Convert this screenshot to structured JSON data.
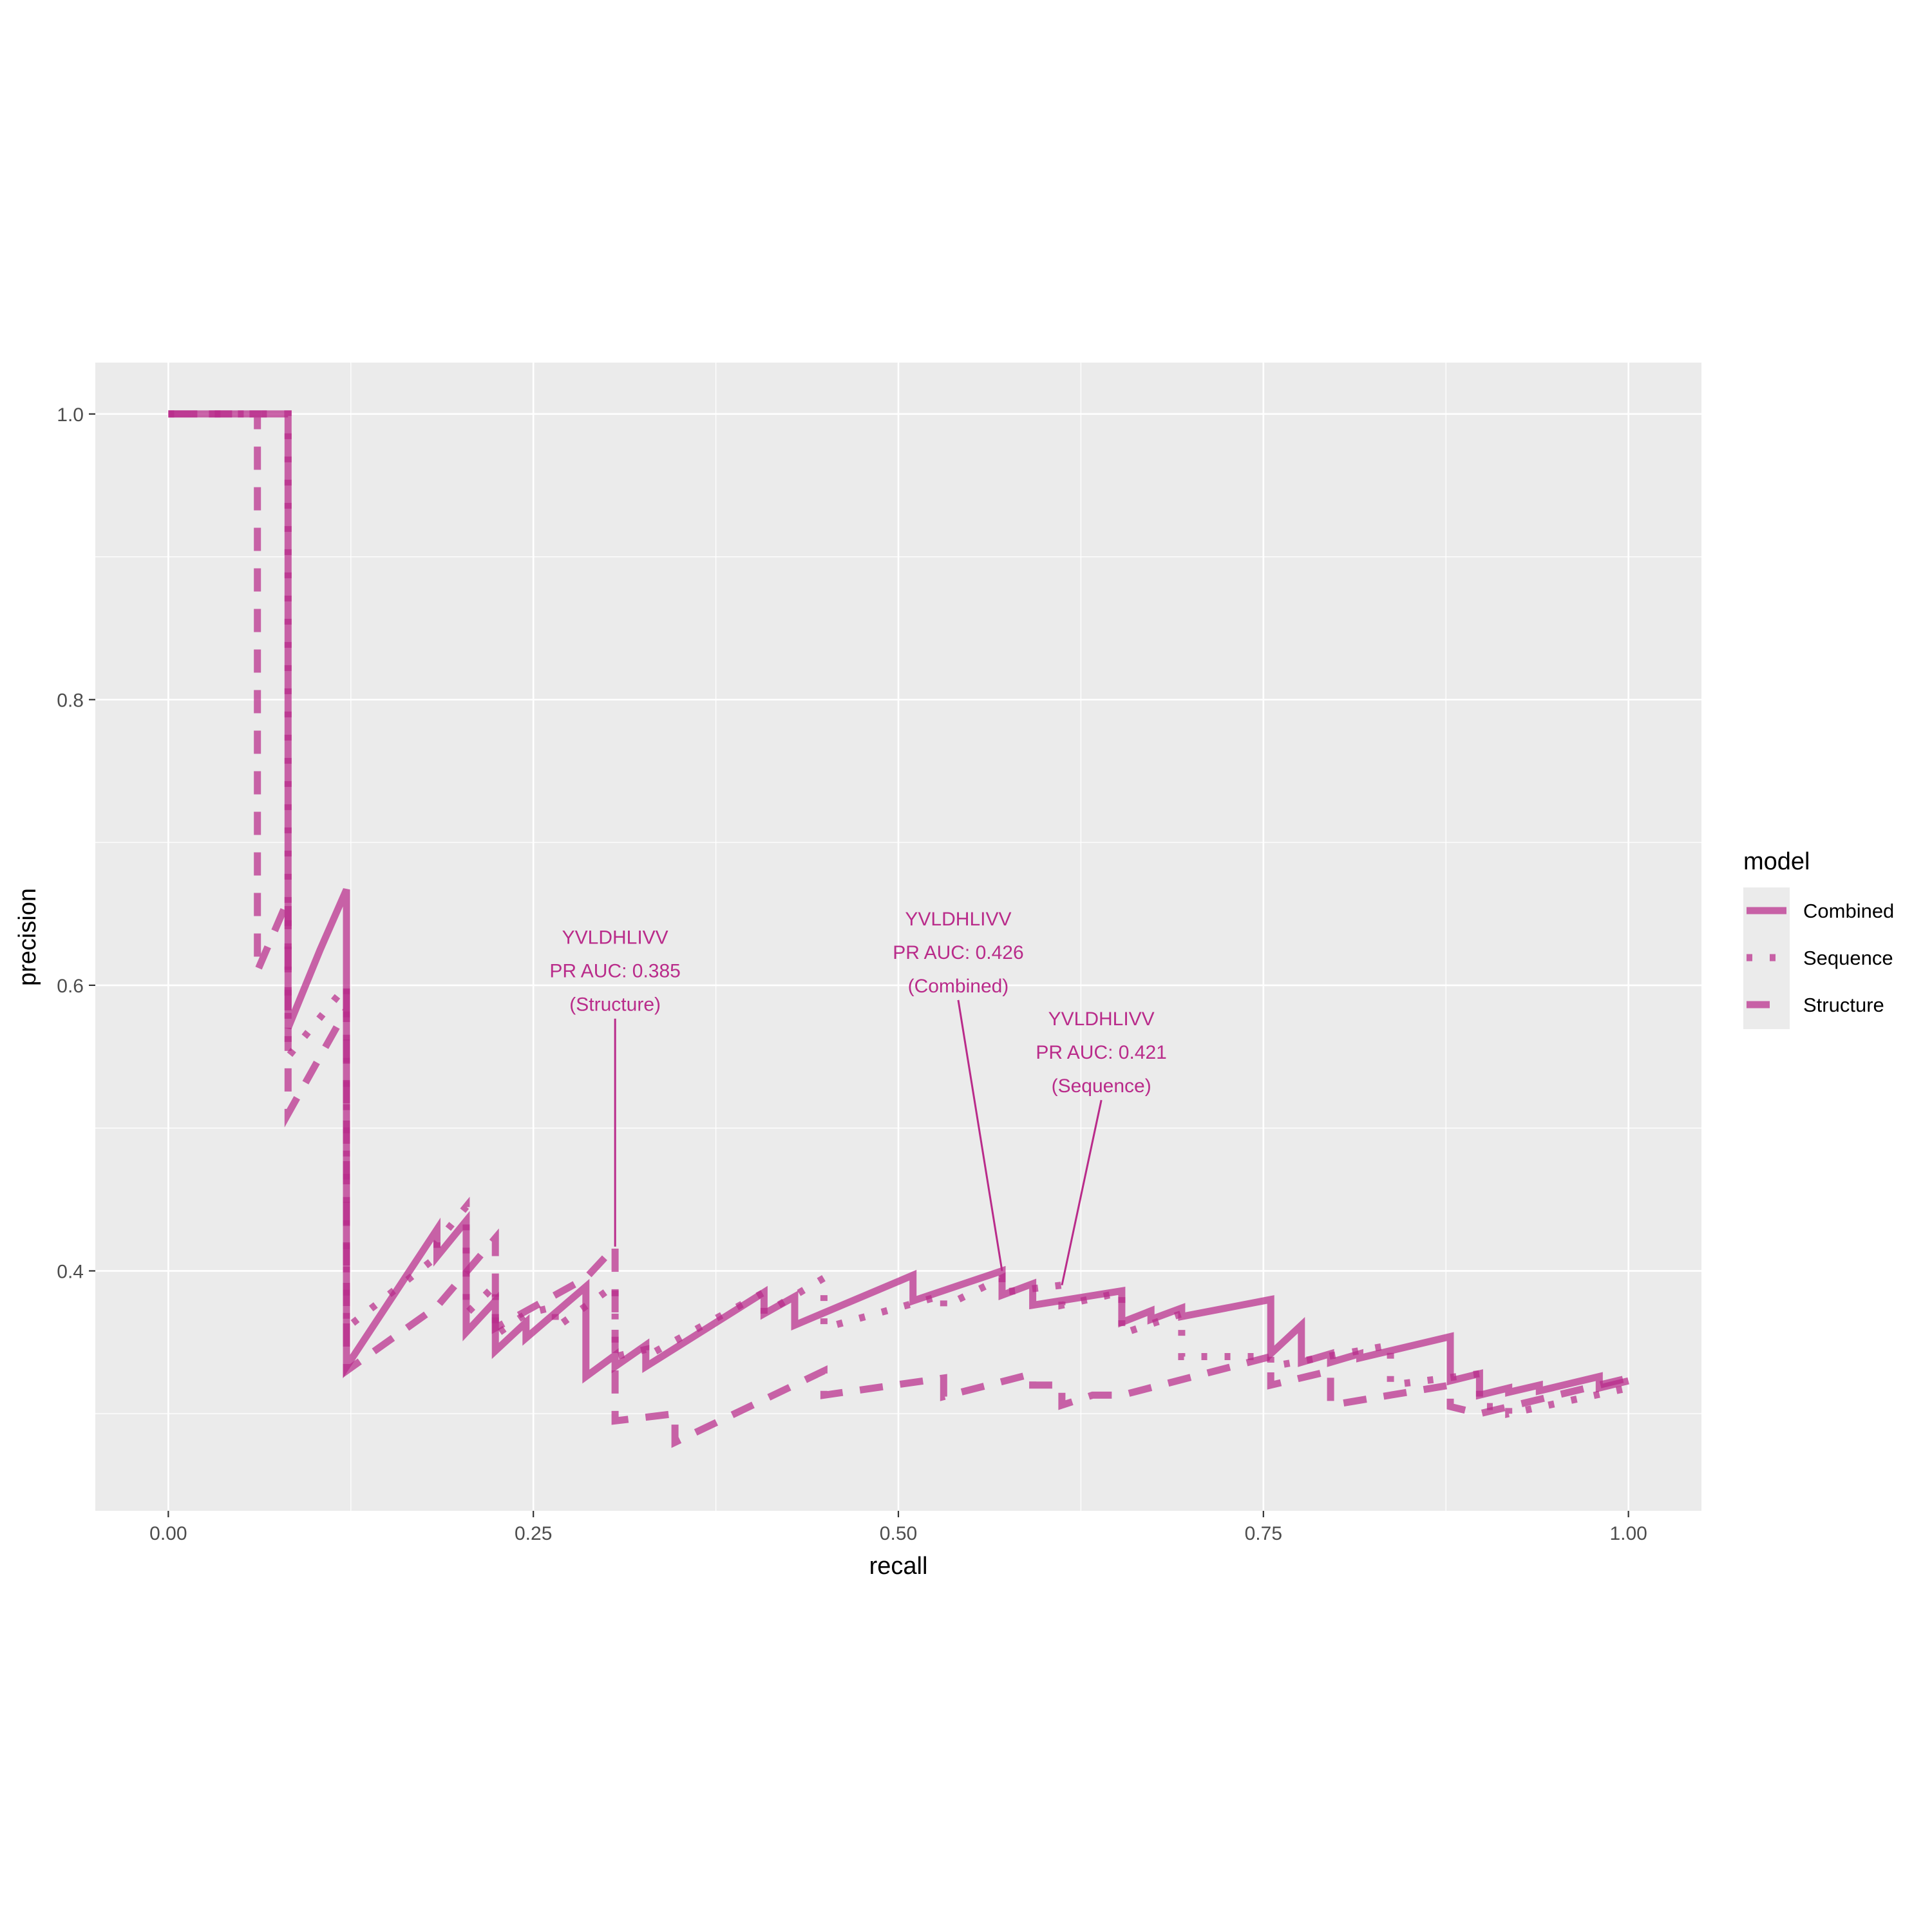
{
  "chart_data": {
    "type": "line",
    "xlabel": "recall",
    "ylabel": "precision",
    "xlim": [
      -0.05,
      1.05
    ],
    "ylim": [
      0.232,
      1.036
    ],
    "x_ticks": [
      {
        "value": 0,
        "label": "0.00"
      },
      {
        "value": 0.25,
        "label": "0.25"
      },
      {
        "value": 0.5,
        "label": "0.50"
      },
      {
        "value": 0.75,
        "label": "0.75"
      },
      {
        "value": 1,
        "label": "1.00"
      }
    ],
    "y_ticks": [
      {
        "value": 0.4,
        "label": "0.4"
      },
      {
        "value": 0.6,
        "label": "0.6"
      },
      {
        "value": 0.8,
        "label": "0.8"
      },
      {
        "value": 1.0,
        "label": "1.0"
      }
    ],
    "grid": true,
    "line_color": "#B92B8A",
    "panel_color": "#EBEBEB",
    "legend": {
      "title": "model",
      "position": "right",
      "entries": [
        {
          "label": "Combined",
          "linetype": "solid"
        },
        {
          "label": "Sequence",
          "linetype": "dotted"
        },
        {
          "label": "Structure",
          "linetype": "dashed"
        }
      ]
    },
    "series": [
      {
        "name": "Combined",
        "linetype": "solid",
        "points": [
          [
            0,
            1
          ],
          [
            0.082,
            1
          ],
          [
            0.082,
            0.57
          ],
          [
            0.104,
            0.625
          ],
          [
            0.122,
            0.667
          ],
          [
            0.122,
            0.333
          ],
          [
            0.184,
            0.429
          ],
          [
            0.184,
            0.41
          ],
          [
            0.204,
            0.435
          ],
          [
            0.204,
            0.357
          ],
          [
            0.224,
            0.379
          ],
          [
            0.224,
            0.344
          ],
          [
            0.245,
            0.364
          ],
          [
            0.245,
            0.353
          ],
          [
            0.286,
            0.389
          ],
          [
            0.286,
            0.326
          ],
          [
            0.306,
            0.341
          ],
          [
            0.306,
            0.333
          ],
          [
            0.327,
            0.348
          ],
          [
            0.327,
            0.333
          ],
          [
            0.408,
            0.385
          ],
          [
            0.408,
            0.37
          ],
          [
            0.429,
            0.382
          ],
          [
            0.429,
            0.362
          ],
          [
            0.51,
            0.397
          ],
          [
            0.51,
            0.379
          ],
          [
            0.571,
            0.4
          ],
          [
            0.571,
            0.383
          ],
          [
            0.592,
            0.391
          ],
          [
            0.592,
            0.376
          ],
          [
            0.653,
            0.386
          ],
          [
            0.653,
            0.364
          ],
          [
            0.673,
            0.372
          ],
          [
            0.673,
            0.366
          ],
          [
            0.694,
            0.374
          ],
          [
            0.694,
            0.368
          ],
          [
            0.755,
            0.38
          ],
          [
            0.755,
            0.342
          ],
          [
            0.776,
            0.362
          ],
          [
            0.776,
            0.336
          ],
          [
            0.796,
            0.342
          ],
          [
            0.796,
            0.336
          ],
          [
            0.816,
            0.342
          ],
          [
            0.816,
            0.339
          ],
          [
            0.878,
            0.354
          ],
          [
            0.878,
            0.323
          ],
          [
            0.898,
            0.328
          ],
          [
            0.898,
            0.313
          ],
          [
            0.918,
            0.318
          ],
          [
            0.918,
            0.315
          ],
          [
            0.939,
            0.32
          ],
          [
            0.939,
            0.316
          ],
          [
            0.98,
            0.326
          ],
          [
            0.98,
            0.318
          ],
          [
            1,
            0.323
          ]
        ]
      },
      {
        "name": "Sequence",
        "linetype": "dotted",
        "points": [
          [
            0,
            1
          ],
          [
            0.082,
            1
          ],
          [
            0.082,
            0.55
          ],
          [
            0.122,
            0.6
          ],
          [
            0.122,
            0.36
          ],
          [
            0.184,
            0.41
          ],
          [
            0.184,
            0.42
          ],
          [
            0.204,
            0.445
          ],
          [
            0.204,
            0.37
          ],
          [
            0.224,
            0.39
          ],
          [
            0.224,
            0.355
          ],
          [
            0.245,
            0.37
          ],
          [
            0.265,
            0.375
          ],
          [
            0.265,
            0.36
          ],
          [
            0.306,
            0.39
          ],
          [
            0.306,
            0.34
          ],
          [
            0.327,
            0.345
          ],
          [
            0.327,
            0.34
          ],
          [
            0.408,
            0.385
          ],
          [
            0.408,
            0.37
          ],
          [
            0.449,
            0.395
          ],
          [
            0.449,
            0.36
          ],
          [
            0.531,
            0.383
          ],
          [
            0.531,
            0.375
          ],
          [
            0.571,
            0.395
          ],
          [
            0.571,
            0.385
          ],
          [
            0.612,
            0.39
          ],
          [
            0.612,
            0.376
          ],
          [
            0.653,
            0.385
          ],
          [
            0.653,
            0.356
          ],
          [
            0.694,
            0.37
          ],
          [
            0.694,
            0.34
          ],
          [
            0.755,
            0.34
          ],
          [
            0.755,
            0.333
          ],
          [
            0.837,
            0.348
          ],
          [
            0.837,
            0.32
          ],
          [
            0.898,
            0.328
          ],
          [
            0.898,
            0.305
          ],
          [
            0.918,
            0.305
          ],
          [
            0.918,
            0.3
          ],
          [
            1,
            0.318
          ]
        ]
      },
      {
        "name": "Structure",
        "linetype": "dashed",
        "points": [
          [
            0,
            1
          ],
          [
            0.061,
            1
          ],
          [
            0.061,
            0.61
          ],
          [
            0.082,
            0.66
          ],
          [
            0.082,
            0.51
          ],
          [
            0.122,
            0.583
          ],
          [
            0.122,
            0.6
          ],
          [
            0.122,
            0.33
          ],
          [
            0.184,
            0.375
          ],
          [
            0.224,
            0.423
          ],
          [
            0.224,
            0.36
          ],
          [
            0.286,
            0.395
          ],
          [
            0.306,
            0.417
          ],
          [
            0.306,
            0.295
          ],
          [
            0.347,
            0.3
          ],
          [
            0.347,
            0.28
          ],
          [
            0.449,
            0.33
          ],
          [
            0.449,
            0.313
          ],
          [
            0.531,
            0.325
          ],
          [
            0.531,
            0.312
          ],
          [
            0.592,
            0.328
          ],
          [
            0.592,
            0.32
          ],
          [
            0.612,
            0.32
          ],
          [
            0.612,
            0.306
          ],
          [
            0.633,
            0.313
          ],
          [
            0.653,
            0.313
          ],
          [
            0.755,
            0.34
          ],
          [
            0.755,
            0.32
          ],
          [
            0.796,
            0.33
          ],
          [
            0.796,
            0.306
          ],
          [
            0.878,
            0.32
          ],
          [
            0.878,
            0.305
          ],
          [
            0.898,
            0.3
          ],
          [
            1,
            0.325
          ]
        ]
      }
    ],
    "annotations": [
      {
        "lines": [
          "YVLDHLIVV",
          "PR AUC: 0.385",
          "(Structure)"
        ],
        "text_x": 0.306,
        "text_y": 0.61,
        "point_x": 0.306,
        "point_y": 0.417
      },
      {
        "lines": [
          "YVLDHLIVV",
          "PR AUC: 0.426",
          "(Combined)"
        ],
        "text_x": 0.541,
        "text_y": 0.623,
        "point_x": 0.571,
        "point_y": 0.4
      },
      {
        "lines": [
          "YVLDHLIVV",
          "PR AUC: 0.421",
          "(Sequence)"
        ],
        "text_x": 0.639,
        "text_y": 0.553,
        "point_x": 0.612,
        "point_y": 0.39
      }
    ]
  }
}
